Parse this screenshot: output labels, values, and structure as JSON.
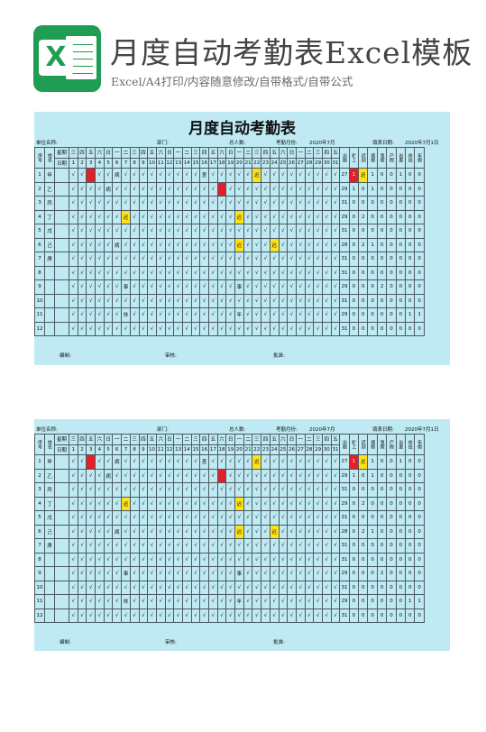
{
  "header": {
    "logo_letter": "X",
    "title": "月度自动考勤表Excel模板",
    "subtitle": "Excel/A4打印/内容随意修改/自带格式/自带公式"
  },
  "sheet": {
    "title": "月度自动考勤表",
    "meta": {
      "unit": "单位名称:",
      "dept": "部门:",
      "total": "总人数:",
      "month_label": "考勤月份:",
      "month_value": "2020年7月",
      "date_label": "填表日期:",
      "date_value": "2020年7月1日"
    },
    "col_headers": {
      "seq": "序号",
      "name": "姓名",
      "weekday": "星期",
      "date": "日期",
      "stats": [
        "出勤",
        "旷工",
        "迟到",
        "病假",
        "事假",
        "产假",
        "出差",
        "休班",
        "年假"
      ]
    },
    "weekdays": [
      "三",
      "四",
      "五",
      "六",
      "日",
      "一",
      "二",
      "三",
      "四",
      "五",
      "六",
      "日",
      "一",
      "二",
      "三",
      "四",
      "五",
      "六",
      "日",
      "一",
      "二",
      "三",
      "四",
      "五",
      "六",
      "日",
      "一",
      "二",
      "三",
      "四",
      "五"
    ],
    "days": [
      "1",
      "2",
      "3",
      "4",
      "5",
      "6",
      "7",
      "8",
      "9",
      "10",
      "11",
      "12",
      "13",
      "14",
      "15",
      "16",
      "17",
      "18",
      "19",
      "20",
      "21",
      "22",
      "23",
      "24",
      "25",
      "26",
      "27",
      "28",
      "29",
      "30",
      "31"
    ],
    "rows": [
      {
        "seq": "1",
        "name": "甲",
        "marks": [
          "√",
          "√",
          "",
          "√",
          "√",
          "病",
          "√",
          "√",
          "√",
          "√",
          "√",
          "√",
          "√",
          "√",
          "√",
          "差",
          "√",
          "√",
          "√",
          "√",
          "√",
          "迟",
          "√",
          "√",
          "√",
          "√",
          "√",
          "√",
          "√",
          "√",
          "√"
        ],
        "stats": [
          "27",
          "1",
          "迟",
          "1",
          "0",
          "0",
          "1",
          "0",
          "0"
        ]
      },
      {
        "seq": "2",
        "name": "乙",
        "marks": [
          "√",
          "√",
          "√",
          "√",
          "病",
          "√",
          "√",
          "√",
          "√",
          "√",
          "√",
          "√",
          "√",
          "√",
          "√",
          "√",
          "√",
          "",
          "√",
          "√",
          "√",
          "√",
          "√",
          "√",
          "√",
          "√",
          "√",
          "√",
          "√",
          "√",
          "√"
        ],
        "stats": [
          "29",
          "1",
          "0",
          "1",
          "0",
          "0",
          "0",
          "0",
          "0"
        ]
      },
      {
        "seq": "3",
        "name": "丙",
        "marks": [
          "√",
          "√",
          "√",
          "√",
          "√",
          "√",
          "√",
          "√",
          "√",
          "√",
          "√",
          "√",
          "√",
          "√",
          "√",
          "√",
          "√",
          "√",
          "√",
          "√",
          "√",
          "√",
          "√",
          "√",
          "√",
          "√",
          "√",
          "√",
          "√",
          "√",
          "√"
        ],
        "stats": [
          "31",
          "0",
          "0",
          "0",
          "0",
          "0",
          "0",
          "0",
          "0"
        ]
      },
      {
        "seq": "4",
        "name": "丁",
        "marks": [
          "√",
          "√",
          "√",
          "√",
          "√",
          "√",
          "迟",
          "√",
          "√",
          "√",
          "√",
          "√",
          "√",
          "√",
          "√",
          "√",
          "√",
          "√",
          "√",
          "迟",
          "√",
          "√",
          "√",
          "√",
          "√",
          "√",
          "√",
          "√",
          "√",
          "√",
          "√"
        ],
        "stats": [
          "29",
          "0",
          "2",
          "0",
          "0",
          "0",
          "0",
          "0",
          "0"
        ]
      },
      {
        "seq": "5",
        "name": "戊",
        "marks": [
          "√",
          "√",
          "√",
          "√",
          "√",
          "√",
          "√",
          "√",
          "√",
          "√",
          "√",
          "√",
          "√",
          "√",
          "√",
          "√",
          "√",
          "√",
          "√",
          "√",
          "√",
          "√",
          "√",
          "√",
          "√",
          "√",
          "√",
          "√",
          "√",
          "√",
          "√"
        ],
        "stats": [
          "31",
          "0",
          "0",
          "0",
          "0",
          "0",
          "0",
          "0",
          "0"
        ]
      },
      {
        "seq": "6",
        "name": "己",
        "marks": [
          "√",
          "√",
          "√",
          "√",
          "√",
          "病",
          "√",
          "√",
          "√",
          "√",
          "√",
          "√",
          "√",
          "√",
          "√",
          "√",
          "√",
          "√",
          "√",
          "迟",
          "√",
          "√",
          "√",
          "迟",
          "√",
          "√",
          "√",
          "√",
          "√",
          "√",
          "√"
        ],
        "stats": [
          "28",
          "0",
          "2",
          "1",
          "0",
          "0",
          "0",
          "0",
          "0"
        ]
      },
      {
        "seq": "7",
        "name": "庚",
        "marks": [
          "√",
          "√",
          "√",
          "√",
          "√",
          "√",
          "√",
          "√",
          "√",
          "√",
          "√",
          "√",
          "√",
          "√",
          "√",
          "√",
          "√",
          "√",
          "√",
          "√",
          "√",
          "√",
          "√",
          "√",
          "√",
          "√",
          "√",
          "√",
          "√",
          "√",
          "√"
        ],
        "stats": [
          "31",
          "0",
          "0",
          "0",
          "0",
          "0",
          "0",
          "0",
          "0"
        ]
      },
      {
        "seq": "8",
        "name": "",
        "marks": [
          "√",
          "√",
          "√",
          "√",
          "√",
          "√",
          "√",
          "√",
          "√",
          "√",
          "√",
          "√",
          "√",
          "√",
          "√",
          "√",
          "√",
          "√",
          "√",
          "√",
          "√",
          "√",
          "√",
          "√",
          "√",
          "√",
          "√",
          "√",
          "√",
          "√",
          "√"
        ],
        "stats": [
          "31",
          "0",
          "0",
          "0",
          "0",
          "0",
          "0",
          "0",
          "0"
        ]
      },
      {
        "seq": "9",
        "name": "",
        "marks": [
          "√",
          "√",
          "√",
          "√",
          "√",
          "√",
          "事",
          "√",
          "√",
          "√",
          "√",
          "√",
          "√",
          "√",
          "√",
          "√",
          "√",
          "√",
          "√",
          "事",
          "√",
          "√",
          "√",
          "√",
          "√",
          "√",
          "√",
          "√",
          "√",
          "√",
          "√"
        ],
        "stats": [
          "29",
          "0",
          "0",
          "0",
          "2",
          "0",
          "0",
          "0",
          "0"
        ]
      },
      {
        "seq": "10",
        "name": "",
        "marks": [
          "√",
          "√",
          "√",
          "√",
          "√",
          "√",
          "√",
          "√",
          "√",
          "√",
          "√",
          "√",
          "√",
          "√",
          "√",
          "√",
          "√",
          "√",
          "√",
          "√",
          "√",
          "√",
          "√",
          "√",
          "√",
          "√",
          "√",
          "√",
          "√",
          "√",
          "√"
        ],
        "stats": [
          "31",
          "0",
          "0",
          "0",
          "0",
          "0",
          "0",
          "0",
          "0"
        ]
      },
      {
        "seq": "11",
        "name": "",
        "marks": [
          "√",
          "√",
          "√",
          "√",
          "√",
          "√",
          "休",
          "√",
          "√",
          "√",
          "√",
          "√",
          "√",
          "√",
          "√",
          "√",
          "√",
          "√",
          "√",
          "年",
          "√",
          "√",
          "√",
          "√",
          "√",
          "√",
          "√",
          "√",
          "√",
          "√",
          "√"
        ],
        "stats": [
          "29",
          "0",
          "0",
          "0",
          "0",
          "0",
          "0",
          "1",
          "1"
        ]
      },
      {
        "seq": "12",
        "name": "",
        "marks": [
          "√",
          "√",
          "√",
          "√",
          "√",
          "√",
          "√",
          "√",
          "√",
          "√",
          "√",
          "√",
          "√",
          "√",
          "√",
          "√",
          "√",
          "√",
          "√",
          "√",
          "√",
          "√",
          "√",
          "√",
          "√",
          "√",
          "√",
          "√",
          "√",
          "√",
          "√"
        ],
        "stats": [
          "31",
          "0",
          "0",
          "0",
          "0",
          "0",
          "0",
          "0",
          "0"
        ]
      }
    ],
    "highlights": {
      "red": [
        [
          0,
          2
        ],
        [
          1,
          17
        ]
      ],
      "yellow": [
        [
          0,
          21
        ],
        [
          3,
          6
        ],
        [
          3,
          19
        ],
        [
          5,
          19
        ],
        [
          5,
          23
        ]
      ]
    },
    "stat_highlight": {
      "row": 0,
      "col": 2,
      "color": "yellow"
    },
    "stat_red": {
      "row": 0,
      "col": 1
    },
    "footer": {
      "maker": "编制:",
      "reviewer": "审核:",
      "approver": "批准:"
    }
  },
  "colors": {
    "sheet_bg": "#bfe9f3",
    "absent_red": "#e3202a",
    "late_yellow": "#ffe31a",
    "logo_green": "#1f9d55"
  }
}
